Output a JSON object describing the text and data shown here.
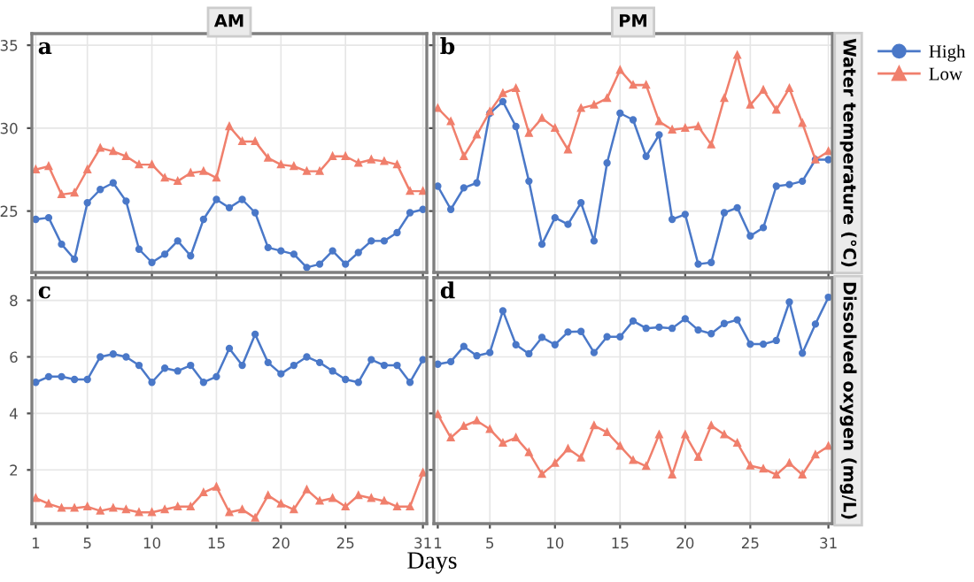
{
  "chart_data": [
    {
      "type": "line",
      "title": "AM",
      "annotations": [
        "a"
      ],
      "x": [
        1,
        2,
        3,
        4,
        5,
        6,
        7,
        8,
        9,
        10,
        11,
        12,
        13,
        14,
        15,
        16,
        17,
        18,
        19,
        20,
        21,
        22,
        23,
        24,
        25,
        26,
        27,
        28,
        29,
        30,
        31
      ],
      "xlim": [
        0.7,
        31.3
      ],
      "xticks": [
        1,
        5,
        10,
        15,
        20,
        25,
        31
      ],
      "ylim": [
        21.3,
        35.7
      ],
      "yticks": [
        25,
        30,
        35
      ],
      "grid": true,
      "tick_labels": "y",
      "series": [
        {
          "color": "#4a78c8",
          "marker": "circle",
          "values": [
            24.5,
            24.6,
            23.0,
            22.1,
            25.5,
            26.3,
            26.7,
            25.6,
            22.7,
            21.9,
            22.4,
            23.2,
            22.3,
            24.5,
            25.7,
            25.2,
            25.7,
            24.9,
            22.8,
            22.6,
            22.4,
            21.6,
            21.8,
            22.6,
            21.8,
            22.5,
            23.2,
            23.2,
            23.7,
            24.9,
            25.1
          ]
        },
        {
          "color": "#f07f6c",
          "marker": "triangle",
          "values": [
            27.5,
            27.7,
            26.0,
            26.1,
            27.5,
            28.8,
            28.6,
            28.3,
            27.8,
            27.8,
            27.0,
            26.8,
            27.3,
            27.4,
            27.0,
            30.1,
            29.2,
            29.2,
            28.2,
            27.8,
            27.7,
            27.4,
            27.4,
            28.3,
            28.3,
            27.9,
            28.1,
            28.0,
            27.8,
            26.2,
            26.2
          ]
        }
      ]
    },
    {
      "type": "line",
      "title": "PM",
      "ylabel": "Water temperature (°C)",
      "annotations": [
        "b"
      ],
      "x": [
        1,
        2,
        3,
        4,
        5,
        6,
        7,
        8,
        9,
        10,
        11,
        12,
        13,
        14,
        15,
        16,
        17,
        18,
        19,
        20,
        21,
        22,
        23,
        24,
        25,
        26,
        27,
        28,
        29,
        30,
        31
      ],
      "xlim": [
        0.7,
        31.3
      ],
      "xticks": [
        1,
        5,
        10,
        15,
        20,
        25,
        31
      ],
      "ylim": [
        21.3,
        35.7
      ],
      "yticks": [
        25,
        30,
        35
      ],
      "grid": true,
      "tick_labels": false,
      "legend": "right",
      "series": [
        {
          "name": "High",
          "color": "#4a78c8",
          "marker": "circle",
          "values": [
            26.5,
            25.1,
            26.4,
            26.7,
            30.9,
            31.6,
            30.1,
            26.8,
            23.0,
            24.6,
            24.2,
            25.5,
            23.2,
            27.9,
            30.9,
            30.5,
            28.3,
            29.6,
            24.5,
            24.8,
            21.8,
            21.9,
            24.9,
            25.2,
            23.5,
            24.0,
            26.5,
            26.6,
            26.8,
            28.1,
            28.1
          ]
        },
        {
          "name": "Low",
          "color": "#f07f6c",
          "marker": "triangle",
          "values": [
            31.2,
            30.4,
            28.3,
            29.6,
            31.0,
            32.1,
            32.4,
            29.7,
            30.6,
            30.0,
            28.7,
            31.2,
            31.4,
            31.8,
            33.5,
            32.6,
            32.6,
            30.4,
            29.9,
            30.0,
            30.1,
            29.0,
            31.8,
            34.4,
            31.4,
            32.3,
            31.1,
            32.4,
            30.3,
            28.1,
            28.6
          ]
        }
      ]
    },
    {
      "type": "line",
      "annotations": [
        "c"
      ],
      "xlabel": "Days",
      "x": [
        1,
        2,
        3,
        4,
        5,
        6,
        7,
        8,
        9,
        10,
        11,
        12,
        13,
        14,
        15,
        16,
        17,
        18,
        19,
        20,
        21,
        22,
        23,
        24,
        25,
        26,
        27,
        28,
        29,
        30,
        31
      ],
      "xlim": [
        0.7,
        31.3
      ],
      "xticks": [
        1,
        5,
        10,
        15,
        20,
        25,
        31
      ],
      "ylim": [
        0.1,
        8.8
      ],
      "yticks": [
        2,
        4,
        6,
        8
      ],
      "grid": true,
      "series": [
        {
          "color": "#4a78c8",
          "marker": "circle",
          "values": [
            5.1,
            5.3,
            5.3,
            5.2,
            5.2,
            6.0,
            6.1,
            6.0,
            5.7,
            5.1,
            5.6,
            5.5,
            5.7,
            5.1,
            5.3,
            6.3,
            5.7,
            6.8,
            5.8,
            5.4,
            5.7,
            6.0,
            5.8,
            5.5,
            5.2,
            5.1,
            5.9,
            5.7,
            5.7,
            5.1,
            5.9
          ]
        },
        {
          "color": "#f07f6c",
          "marker": "triangle",
          "values": [
            1.0,
            0.8,
            0.65,
            0.65,
            0.7,
            0.55,
            0.65,
            0.6,
            0.5,
            0.5,
            0.6,
            0.7,
            0.7,
            1.2,
            1.4,
            0.5,
            0.6,
            0.3,
            1.1,
            0.8,
            0.6,
            1.3,
            0.9,
            1.0,
            0.7,
            1.1,
            1.0,
            0.9,
            0.7,
            0.7,
            1.9
          ]
        }
      ]
    },
    {
      "type": "line",
      "ylabel": "Dissolved oxygen (mg/L)",
      "annotations": [
        "d"
      ],
      "x": [
        1,
        2,
        3,
        4,
        5,
        6,
        7,
        8,
        9,
        10,
        11,
        12,
        13,
        14,
        15,
        16,
        17,
        18,
        19,
        20,
        21,
        22,
        23,
        24,
        25,
        26,
        27,
        28,
        29,
        30,
        31
      ],
      "xlim": [
        0.7,
        31.3
      ],
      "xticks": [
        1,
        5,
        10,
        15,
        20,
        25,
        31
      ],
      "ylim": [
        0.1,
        8.8
      ],
      "yticks": [
        2,
        4,
        6,
        8
      ],
      "grid": true,
      "tick_labels": "x",
      "series": [
        {
          "color": "#4a78c8",
          "marker": "circle",
          "values": [
            5.74,
            5.83,
            6.37,
            6.04,
            6.15,
            7.63,
            6.43,
            6.11,
            6.69,
            6.43,
            6.88,
            6.9,
            6.15,
            6.71,
            6.71,
            7.27,
            7.01,
            7.05,
            7.01,
            7.35,
            6.95,
            6.82,
            7.18,
            7.31,
            6.45,
            6.45,
            6.58,
            7.94,
            6.13,
            7.16,
            8.11
          ]
        },
        {
          "color": "#f07f6c",
          "marker": "triangle",
          "values": [
            3.96,
            3.14,
            3.55,
            3.74,
            3.44,
            2.95,
            3.14,
            2.62,
            1.85,
            2.24,
            2.75,
            2.43,
            3.57,
            3.33,
            2.84,
            2.34,
            2.13,
            3.25,
            1.83,
            3.25,
            2.45,
            3.57,
            3.25,
            2.95,
            2.15,
            2.04,
            1.83,
            2.24,
            1.83,
            2.54,
            2.84
          ]
        }
      ]
    }
  ]
}
